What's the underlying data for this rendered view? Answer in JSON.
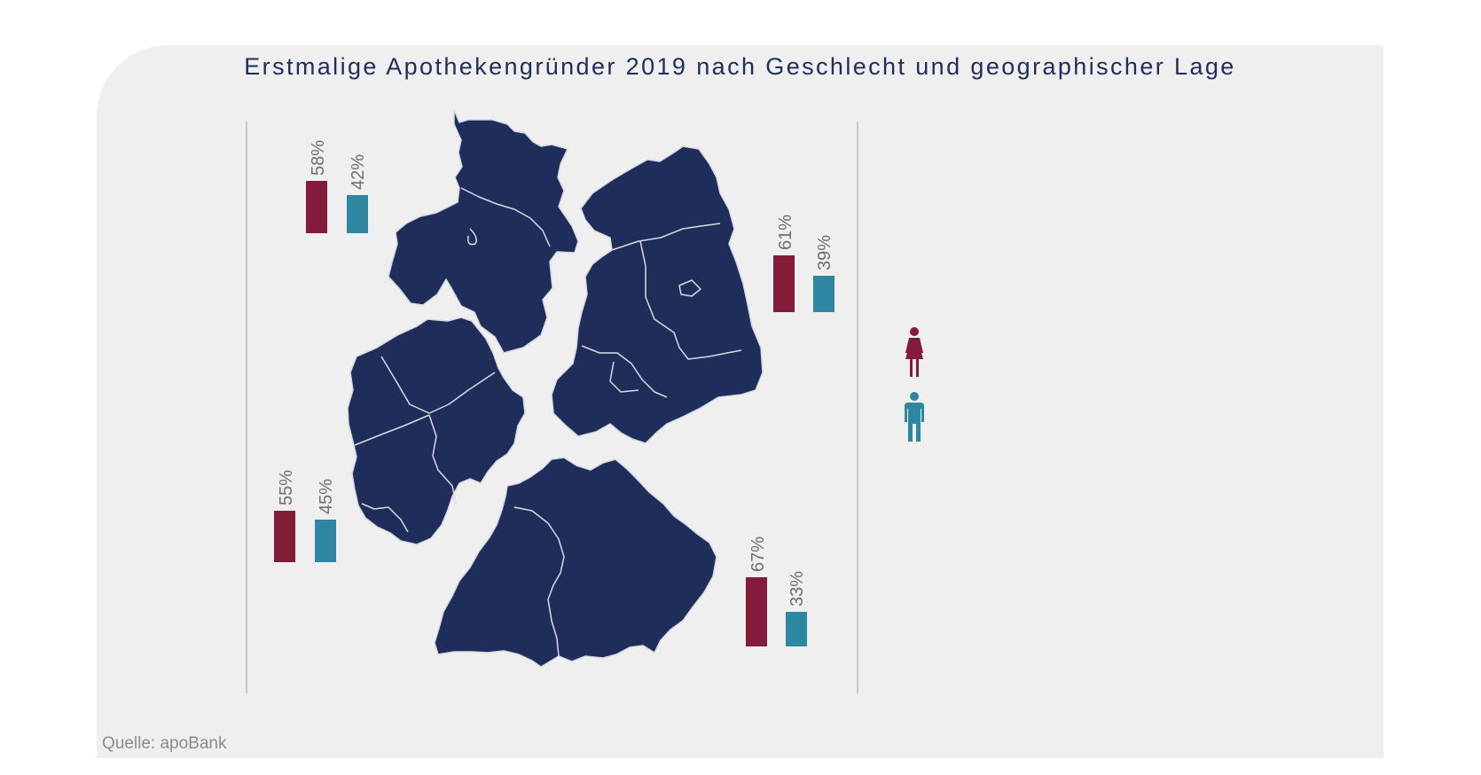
{
  "title": "Erstmalige Apothekengründer 2019 nach Geschlecht und geographischer Lage",
  "source": "Quelle: apoBank",
  "colors": {
    "female": "#851b3b",
    "male": "#2e87a0",
    "map": "#1f2d5a",
    "panel": "#efefef"
  },
  "legend": [
    {
      "series": "female",
      "icon": "female-person-icon"
    },
    {
      "series": "male",
      "icon": "male-person-icon"
    }
  ],
  "chart_data": {
    "type": "bar",
    "categories": [
      "Nord",
      "Ost",
      "West",
      "Süd"
    ],
    "series": [
      {
        "key": "female",
        "values": [
          58,
          61,
          55,
          67
        ]
      },
      {
        "key": "male",
        "values": [
          42,
          39,
          45,
          33
        ]
      }
    ],
    "labels": {
      "female": [
        "58%",
        "61%",
        "55%",
        "67%"
      ],
      "male": [
        "42%",
        "39%",
        "45%",
        "33%"
      ]
    },
    "unit": "%",
    "ylim": [
      0,
      100
    ],
    "legend_position": "right"
  }
}
